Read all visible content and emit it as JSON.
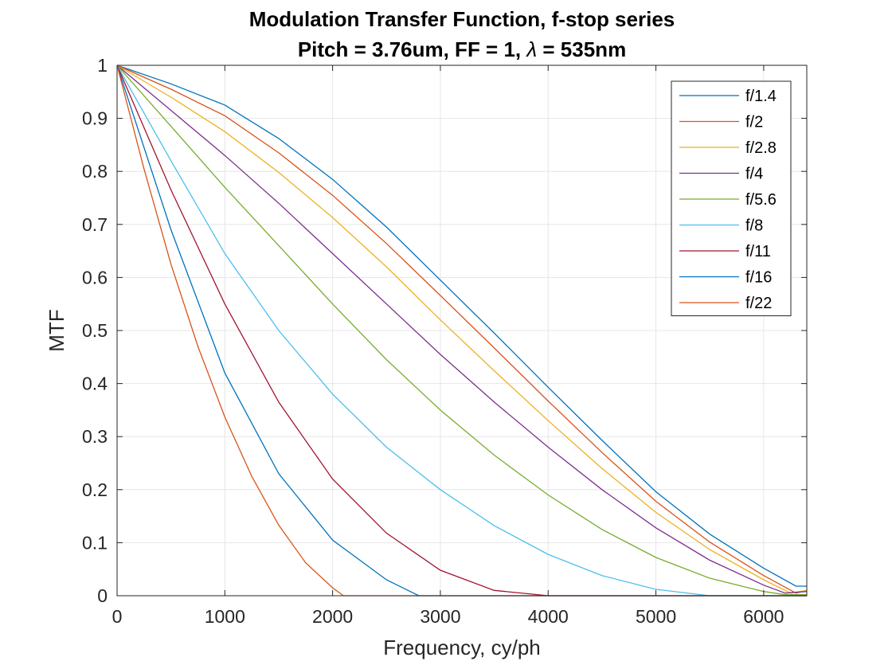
{
  "chart_data": {
    "type": "line",
    "title": "Modulation Transfer Function, f-stop series",
    "subtitle_prefix": "Pitch = 3.76um, FF = 1, ",
    "subtitle_lambda": "λ",
    "subtitle_suffix": " = 535nm",
    "xlabel": "Frequency, cy/ph",
    "ylabel": "MTF",
    "xlim": [
      0,
      6400
    ],
    "ylim": [
      0,
      1
    ],
    "xticks": [
      0,
      1000,
      2000,
      3000,
      4000,
      5000,
      6000
    ],
    "yticks": [
      0,
      0.1,
      0.2,
      0.3,
      0.4,
      0.5,
      0.6,
      0.7,
      0.8,
      0.9,
      1
    ],
    "xtick_labels": [
      "0",
      "1000",
      "2000",
      "3000",
      "4000",
      "5000",
      "6000"
    ],
    "ytick_labels": [
      "0",
      "0.1",
      "0.2",
      "0.3",
      "0.4",
      "0.5",
      "0.6",
      "0.7",
      "0.8",
      "0.9",
      "1"
    ],
    "grid": true,
    "legend_position": "top-right",
    "series": [
      {
        "name": "f/1.4",
        "color": "#0072BD",
        "x": [
          0,
          500,
          1000,
          1500,
          2000,
          2500,
          3000,
          3500,
          4000,
          4500,
          5000,
          5500,
          6000,
          6300,
          6400
        ],
        "y": [
          1,
          0.965,
          0.925,
          0.862,
          0.785,
          0.695,
          0.595,
          0.495,
          0.393,
          0.293,
          0.196,
          0.116,
          0.052,
          0.018,
          0.018
        ]
      },
      {
        "name": "f/2",
        "color": "#D95319",
        "x": [
          0,
          500,
          1000,
          1500,
          2000,
          2500,
          3000,
          3500,
          4000,
          4500,
          5000,
          5500,
          6000,
          6300,
          6400
        ],
        "y": [
          1,
          0.955,
          0.905,
          0.835,
          0.755,
          0.664,
          0.566,
          0.467,
          0.367,
          0.27,
          0.178,
          0.101,
          0.038,
          0.005,
          0.01
        ]
      },
      {
        "name": "f/2.8",
        "color": "#EDB120",
        "x": [
          0,
          500,
          1000,
          1500,
          2000,
          2500,
          3000,
          3500,
          4000,
          4500,
          5000,
          5500,
          6000,
          6250,
          6400
        ],
        "y": [
          1,
          0.94,
          0.875,
          0.798,
          0.713,
          0.62,
          0.52,
          0.424,
          0.33,
          0.24,
          0.157,
          0.087,
          0.03,
          0.005,
          0.01
        ]
      },
      {
        "name": "f/4",
        "color": "#7E2F8E",
        "x": [
          0,
          500,
          1000,
          1500,
          2000,
          2500,
          3000,
          3500,
          4000,
          4500,
          5000,
          5500,
          6000,
          6200,
          6400
        ],
        "y": [
          1,
          0.915,
          0.83,
          0.74,
          0.645,
          0.55,
          0.455,
          0.365,
          0.28,
          0.2,
          0.128,
          0.067,
          0.02,
          0.005,
          0.008
        ]
      },
      {
        "name": "f/5.6",
        "color": "#77AC30",
        "x": [
          0,
          500,
          1000,
          1500,
          2000,
          2500,
          3000,
          3500,
          4000,
          4500,
          5000,
          5500,
          6000,
          6200,
          6400
        ],
        "y": [
          1,
          0.885,
          0.77,
          0.66,
          0.55,
          0.445,
          0.35,
          0.265,
          0.19,
          0.125,
          0.072,
          0.033,
          0.008,
          0.002,
          0.002
        ]
      },
      {
        "name": "f/8",
        "color": "#4DBEEE",
        "x": [
          0,
          500,
          1000,
          1500,
          2000,
          2500,
          3000,
          3500,
          4000,
          4500,
          5000,
          5500,
          6000,
          6400
        ],
        "y": [
          1,
          0.82,
          0.645,
          0.5,
          0.38,
          0.28,
          0.2,
          0.132,
          0.078,
          0.038,
          0.012,
          0.0,
          0.0,
          0.0
        ]
      },
      {
        "name": "f/11",
        "color": "#A2142F",
        "x": [
          0,
          500,
          1000,
          1500,
          2000,
          2500,
          3000,
          3500,
          4000,
          4500,
          5000,
          6400
        ],
        "y": [
          1,
          0.765,
          0.55,
          0.365,
          0.22,
          0.118,
          0.048,
          0.01,
          0.0,
          0.0,
          0.0,
          0.0
        ]
      },
      {
        "name": "f/16",
        "color": "#0072BD",
        "x": [
          0,
          500,
          1000,
          1500,
          2000,
          2500,
          2800,
          3000,
          6400
        ],
        "y": [
          1,
          0.69,
          0.42,
          0.23,
          0.105,
          0.03,
          0.0,
          0.0,
          0.0
        ]
      },
      {
        "name": "f/22",
        "color": "#D95319",
        "x": [
          0,
          250,
          500,
          750,
          1000,
          1250,
          1500,
          1750,
          2000,
          2100,
          6400
        ],
        "y": [
          1,
          0.805,
          0.625,
          0.47,
          0.337,
          0.225,
          0.133,
          0.062,
          0.015,
          0.0,
          0.0
        ]
      }
    ]
  }
}
